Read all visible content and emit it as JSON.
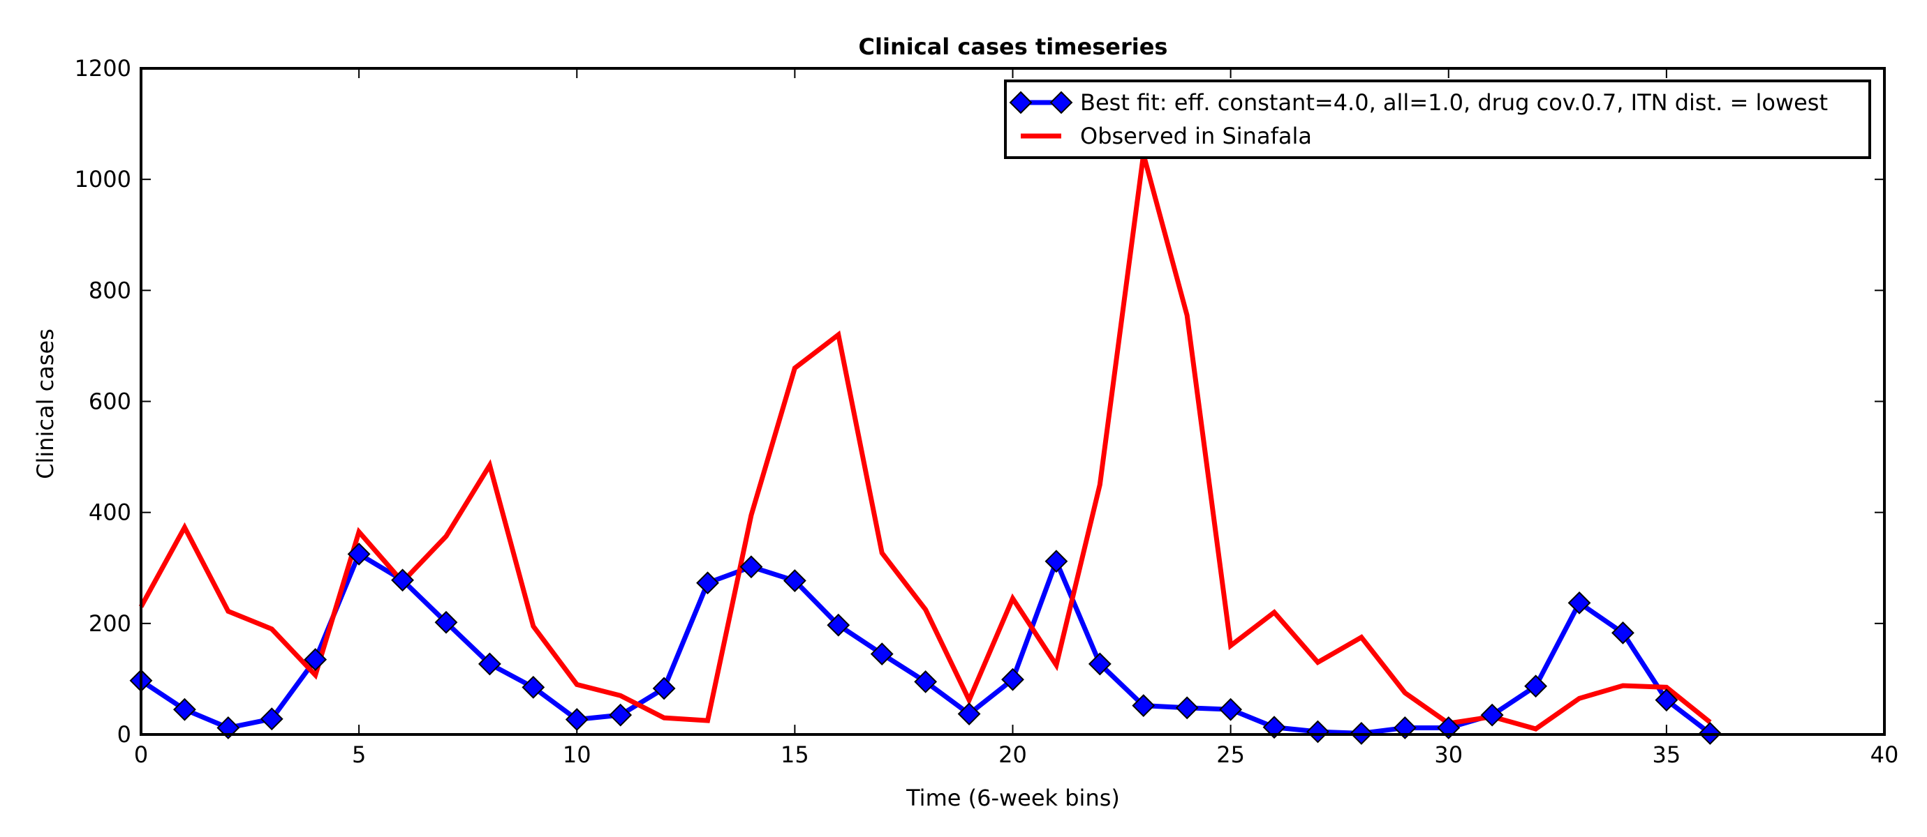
{
  "chart_data": {
    "type": "line",
    "title": "Clinical cases timeseries",
    "xlabel": "Time (6-week bins)",
    "ylabel": "Clinical cases",
    "xlim": [
      0,
      40
    ],
    "ylim": [
      0,
      1200
    ],
    "xticks": [
      0,
      5,
      10,
      15,
      20,
      25,
      30,
      35,
      40
    ],
    "yticks": [
      0,
      200,
      400,
      600,
      800,
      1000,
      1200
    ],
    "grid": false,
    "legend_position": "top-right",
    "series": [
      {
        "name": "Best fit: eff. constant=4.0, all=1.0, drug cov.0.7, ITN dist. = lowest",
        "color": "#0000ff",
        "marker": "diamond",
        "x": [
          0,
          1,
          2,
          3,
          4,
          5,
          6,
          7,
          8,
          9,
          10,
          11,
          12,
          13,
          14,
          15,
          16,
          17,
          18,
          19,
          20,
          21,
          22,
          23,
          24,
          25,
          26,
          27,
          28,
          29,
          30,
          31,
          32,
          33,
          34,
          35,
          36
        ],
        "values": [
          97,
          45,
          12,
          28,
          135,
          325,
          278,
          202,
          127,
          85,
          27,
          35,
          83,
          273,
          302,
          277,
          197,
          145,
          95,
          37,
          99,
          312,
          127,
          52,
          48,
          45,
          13,
          5,
          2,
          12,
          12,
          35,
          87,
          237,
          183,
          62,
          2
        ]
      },
      {
        "name": "Observed in Sinafala",
        "color": "#ff0000",
        "marker": "none",
        "x": [
          0,
          1,
          2,
          3,
          4,
          5,
          6,
          7,
          8,
          9,
          10,
          11,
          12,
          13,
          14,
          15,
          16,
          17,
          18,
          19,
          20,
          21,
          22,
          23,
          24,
          25,
          26,
          27,
          28,
          29,
          30,
          31,
          32,
          33,
          34,
          35,
          36
        ],
        "values": [
          230,
          373,
          222,
          190,
          107,
          365,
          275,
          357,
          485,
          195,
          90,
          70,
          30,
          25,
          395,
          660,
          720,
          327,
          225,
          62,
          245,
          125,
          450,
          1045,
          755,
          160,
          220,
          130,
          175,
          75,
          20,
          32,
          10,
          65,
          88,
          85,
          22
        ]
      }
    ]
  }
}
